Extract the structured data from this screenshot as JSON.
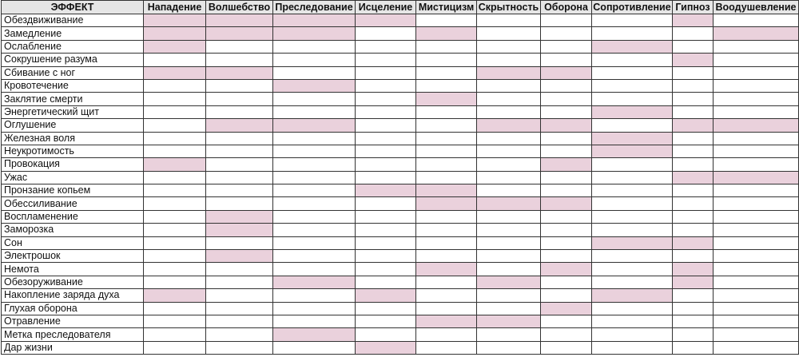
{
  "colors": {
    "mark": "#ead1dc",
    "header_bg": "#e6e6e6"
  },
  "table": {
    "header": [
      "ЭФФЕКТ",
      "Нападение",
      "Волшебство",
      "Преследование",
      "Исцеление",
      "Мистицизм",
      "Скрытность",
      "Оборона",
      "Сопротивление",
      "Гипноз",
      "Воодушевление"
    ],
    "rows": [
      {
        "effect": "Обездвиживание",
        "marked": [
          0,
          1,
          2,
          3,
          8
        ]
      },
      {
        "effect": "Замедление",
        "marked": [
          0,
          1,
          2,
          4,
          9
        ]
      },
      {
        "effect": "Ослабление",
        "marked": [
          0,
          7
        ]
      },
      {
        "effect": "Сокрушение разума",
        "marked": [
          8
        ]
      },
      {
        "effect": "Сбивание с ног",
        "marked": [
          0,
          1,
          5,
          6
        ]
      },
      {
        "effect": "Кровотечение",
        "marked": [
          2
        ]
      },
      {
        "effect": "Заклятие смерти",
        "marked": [
          4
        ]
      },
      {
        "effect": "Энергетический щит",
        "marked": [
          7
        ]
      },
      {
        "effect": "Оглушение",
        "marked": [
          1,
          2,
          5,
          6,
          8,
          9
        ]
      },
      {
        "effect": "Железная воля",
        "marked": [
          7
        ]
      },
      {
        "effect": "Неукротимость",
        "marked": [
          7
        ]
      },
      {
        "effect": "Провокация",
        "marked": [
          0,
          6
        ]
      },
      {
        "effect": "Ужас",
        "marked": [
          8,
          9
        ]
      },
      {
        "effect": "Пронзание копьем",
        "marked": [
          3,
          4
        ]
      },
      {
        "effect": "Обессиливание",
        "marked": [
          4,
          5,
          6
        ]
      },
      {
        "effect": "Воспламенение",
        "marked": [
          1
        ]
      },
      {
        "effect": "Заморозка",
        "marked": [
          1
        ]
      },
      {
        "effect": "Сон",
        "marked": [
          7,
          8
        ]
      },
      {
        "effect": "Электрошок",
        "marked": [
          1
        ]
      },
      {
        "effect": "Немота",
        "marked": [
          4,
          6,
          8
        ]
      },
      {
        "effect": "Обезоруживание",
        "marked": [
          2,
          5,
          8
        ]
      },
      {
        "effect": "Накопление заряда духа",
        "marked": [
          0,
          3,
          7
        ]
      },
      {
        "effect": "Глухая оборона",
        "marked": [
          6
        ]
      },
      {
        "effect": "Отравление",
        "marked": [
          4,
          5
        ]
      },
      {
        "effect": "Метка преследователя",
        "marked": [
          2
        ]
      },
      {
        "effect": "Дар жизни",
        "marked": [
          3
        ]
      }
    ]
  }
}
